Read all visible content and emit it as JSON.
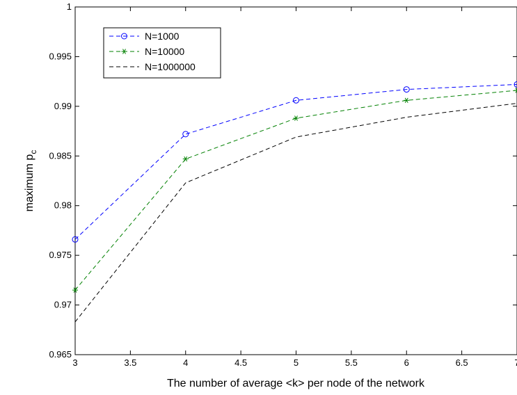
{
  "chart_data": {
    "type": "line",
    "title": "",
    "xlabel": "The number of average <k> per node of the network",
    "ylabel": "maximum p",
    "ylabel_subscript": "c",
    "xlim": [
      3,
      7
    ],
    "ylim": [
      0.965,
      1
    ],
    "xticks": [
      "3",
      "3.5",
      "4",
      "4.5",
      "5",
      "5.5",
      "6",
      "6.5",
      "7"
    ],
    "yticks": [
      "0.965",
      "0.97",
      "0.975",
      "0.98",
      "0.985",
      "0.99",
      "0.995",
      "1"
    ],
    "grid": false,
    "legend_position": "top-left",
    "x": [
      3,
      4,
      5,
      6,
      7
    ],
    "series": [
      {
        "name": "N=1000",
        "color": "#0000ff",
        "marker": "circle",
        "line": "dashed",
        "values": [
          0.9766,
          0.9872,
          0.9906,
          0.9917,
          0.9922
        ]
      },
      {
        "name": "N=10000",
        "color": "#008000",
        "marker": "asterisk",
        "line": "dashed",
        "values": [
          0.9715,
          0.9847,
          0.9888,
          0.9906,
          0.9916
        ]
      },
      {
        "name": "N=1000000",
        "color": "#000000",
        "marker": "none",
        "line": "dashed",
        "values": [
          0.9683,
          0.9823,
          0.9869,
          0.9889,
          0.9903
        ]
      }
    ]
  }
}
